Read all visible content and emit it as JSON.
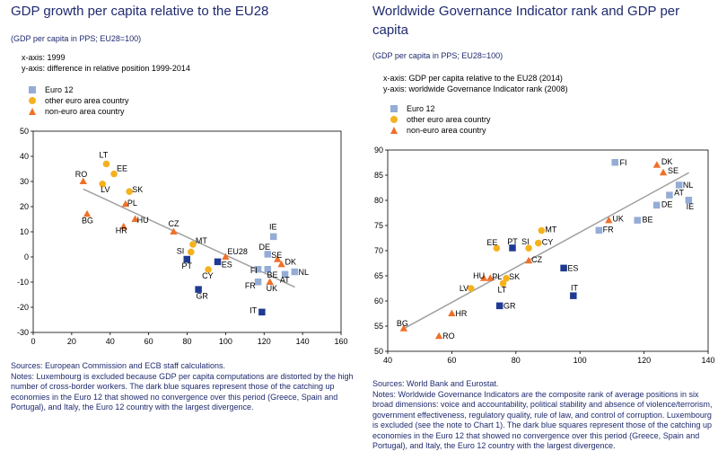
{
  "colors": {
    "title": "#1f2a6e",
    "euro12": "#94acd6",
    "euro12_dark": "#1f3a93",
    "other_euro": "#f5b21f",
    "non_euro": "#f07028",
    "trend": "#a0a0a0",
    "grid": "#000000"
  },
  "legend_labels": {
    "euro12": "Euro 12",
    "other_euro": "other euro area country",
    "non_euro": "non-euro area country"
  },
  "chart_data": [
    {
      "type": "scatter",
      "title": "GDP growth per capita relative to the EU28",
      "subtitle": "(GDP per capita in PPS; EU28=100)",
      "notes": [
        "x-axis: 1999",
        "y-axis: difference in relative position 1999-2014"
      ],
      "xlim": [
        0,
        160
      ],
      "ylim": [
        -30,
        50
      ],
      "xticks": [
        "0",
        "20",
        "40",
        "60",
        "80",
        "100",
        "120",
        "140",
        "160"
      ],
      "yticks": [
        "-30",
        "-20",
        "-10",
        "0",
        "10",
        "20",
        "30",
        "40",
        "50"
      ],
      "grid": false,
      "legend": "top-left",
      "trendline": [
        [
          26,
          27
        ],
        [
          136,
          -12
        ]
      ],
      "points": [
        {
          "label": "LT",
          "x": 38,
          "y": 37,
          "group": "other_euro"
        },
        {
          "label": "EE",
          "x": 42,
          "y": 33,
          "group": "other_euro"
        },
        {
          "label": "RO",
          "x": 26,
          "y": 30,
          "group": "non_euro"
        },
        {
          "label": "LV",
          "x": 36,
          "y": 29,
          "group": "other_euro"
        },
        {
          "label": "SK",
          "x": 50,
          "y": 26,
          "group": "other_euro"
        },
        {
          "label": "PL",
          "x": 48,
          "y": 21,
          "group": "non_euro"
        },
        {
          "label": "BG",
          "x": 28,
          "y": 17,
          "group": "non_euro"
        },
        {
          "label": "HU",
          "x": 53,
          "y": 15,
          "group": "non_euro"
        },
        {
          "label": "HR",
          "x": 47,
          "y": 12,
          "group": "non_euro"
        },
        {
          "label": "CZ",
          "x": 73,
          "y": 10,
          "group": "non_euro"
        },
        {
          "label": "IE",
          "x": 125,
          "y": 8,
          "group": "euro12"
        },
        {
          "label": "SI",
          "x": 82,
          "y": 2,
          "group": "other_euro"
        },
        {
          "label": "MT",
          "x": 83,
          "y": 5,
          "group": "other_euro"
        },
        {
          "label": "EU28",
          "x": 100,
          "y": 0,
          "group": "non_euro"
        },
        {
          "label": "DE",
          "x": 122,
          "y": 1,
          "group": "euro12"
        },
        {
          "label": "PT",
          "x": 80,
          "y": -1,
          "group": "euro12_dark"
        },
        {
          "label": "ES",
          "x": 96,
          "y": -2,
          "group": "euro12_dark"
        },
        {
          "label": "SE",
          "x": 127,
          "y": -1,
          "group": "non_euro"
        },
        {
          "label": "DK",
          "x": 129,
          "y": -3,
          "group": "non_euro"
        },
        {
          "label": "FI",
          "x": 117,
          "y": -5,
          "group": "euro12"
        },
        {
          "label": "BE",
          "x": 122,
          "y": -5,
          "group": "euro12"
        },
        {
          "label": "NL",
          "x": 136,
          "y": -6,
          "group": "euro12"
        },
        {
          "label": "AT",
          "x": 131,
          "y": -7,
          "group": "euro12"
        },
        {
          "label": "CY",
          "x": 91,
          "y": -5,
          "group": "other_euro"
        },
        {
          "label": "FR",
          "x": 117,
          "y": -10,
          "group": "euro12"
        },
        {
          "label": "UK",
          "x": 123,
          "y": -10,
          "group": "non_euro"
        },
        {
          "label": "GR",
          "x": 86,
          "y": -13,
          "group": "euro12_dark"
        },
        {
          "label": "IT",
          "x": 119,
          "y": -22,
          "group": "euro12_dark"
        }
      ],
      "sources": "Sources: European Commission and ECB staff calculations.",
      "footnote": "Notes: Luxembourg is excluded because GDP per capita computations are distorted by the high number of cross-border workers. The dark blue squares represent those of the catching up economies in the Euro 12 that showed no convergence over this period (Greece, Spain and Portugal), and Italy, the Euro 12 country with the largest divergence."
    },
    {
      "type": "scatter",
      "title": "Worldwide Governance Indicator rank and GDP per capita",
      "subtitle": "(GDP per capita in PPS; EU28=100)",
      "notes": [
        "x-axis: GDP per capita relative to the EU28 (2014)",
        "y-axis: worldwide Governance Indicator rank (2008)"
      ],
      "xlim": [
        40,
        140
      ],
      "ylim": [
        50,
        90
      ],
      "xticks": [
        "40",
        "60",
        "80",
        "100",
        "120",
        "140"
      ],
      "yticks": [
        "50",
        "55",
        "60",
        "65",
        "70",
        "75",
        "80",
        "85",
        "90"
      ],
      "grid": false,
      "legend": "top-left",
      "trendline": [
        [
          45,
          54.5
        ],
        [
          134,
          85.5
        ]
      ],
      "points": [
        {
          "label": "FI",
          "x": 111,
          "y": 87.5,
          "group": "euro12"
        },
        {
          "label": "DK",
          "x": 124,
          "y": 87,
          "group": "non_euro"
        },
        {
          "label": "SE",
          "x": 126,
          "y": 85.5,
          "group": "non_euro"
        },
        {
          "label": "NL",
          "x": 131,
          "y": 83,
          "group": "euro12"
        },
        {
          "label": "AT",
          "x": 128,
          "y": 81,
          "group": "euro12"
        },
        {
          "label": "IE",
          "x": 134,
          "y": 80,
          "group": "euro12"
        },
        {
          "label": "DE",
          "x": 124,
          "y": 79,
          "group": "euro12"
        },
        {
          "label": "BE",
          "x": 118,
          "y": 76,
          "group": "euro12"
        },
        {
          "label": "UK",
          "x": 109,
          "y": 76,
          "group": "non_euro"
        },
        {
          "label": "FR",
          "x": 106,
          "y": 74,
          "group": "euro12"
        },
        {
          "label": "MT",
          "x": 88,
          "y": 74,
          "group": "other_euro"
        },
        {
          "label": "CY",
          "x": 87,
          "y": 71.5,
          "group": "other_euro"
        },
        {
          "label": "EE",
          "x": 74,
          "y": 70.5,
          "group": "other_euro"
        },
        {
          "label": "PT",
          "x": 79,
          "y": 70.5,
          "group": "euro12_dark"
        },
        {
          "label": "SI",
          "x": 84,
          "y": 70.5,
          "group": "other_euro"
        },
        {
          "label": "CZ",
          "x": 84,
          "y": 68,
          "group": "non_euro"
        },
        {
          "label": "ES",
          "x": 95,
          "y": 66.5,
          "group": "euro12_dark"
        },
        {
          "label": "HU",
          "x": 70,
          "y": 64.5,
          "group": "non_euro"
        },
        {
          "label": "PL",
          "x": 72,
          "y": 64.5,
          "group": "non_euro"
        },
        {
          "label": "SK",
          "x": 77,
          "y": 64.5,
          "group": "other_euro"
        },
        {
          "label": "LT",
          "x": 76,
          "y": 63.5,
          "group": "other_euro"
        },
        {
          "label": "LV",
          "x": 66,
          "y": 62.5,
          "group": "other_euro"
        },
        {
          "label": "IT",
          "x": 98,
          "y": 61,
          "group": "euro12_dark"
        },
        {
          "label": "GR",
          "x": 75,
          "y": 59,
          "group": "euro12_dark"
        },
        {
          "label": "HR",
          "x": 60,
          "y": 57.5,
          "group": "non_euro"
        },
        {
          "label": "BG",
          "x": 45,
          "y": 54.5,
          "group": "non_euro"
        },
        {
          "label": "RO",
          "x": 56,
          "y": 53,
          "group": "non_euro"
        }
      ],
      "sources": "Sources: World Bank and Eurostat.",
      "footnote": "Notes: Worldwide Governance Indicators are the composite rank of average positions in six broad dimensions: voice and accountability, political stability and absence of violence/terrorism, government effectiveness, regulatory quality, rule of law, and control of corruption. Luxembourg is excluded (see the note to Chart 1). The dark blue squares represent those of the catching up economies in the Euro 12 that showed no convergence over this period (Greece, Spain and Portugal), and Italy, the Euro 12 country with the largest divergence."
    }
  ]
}
